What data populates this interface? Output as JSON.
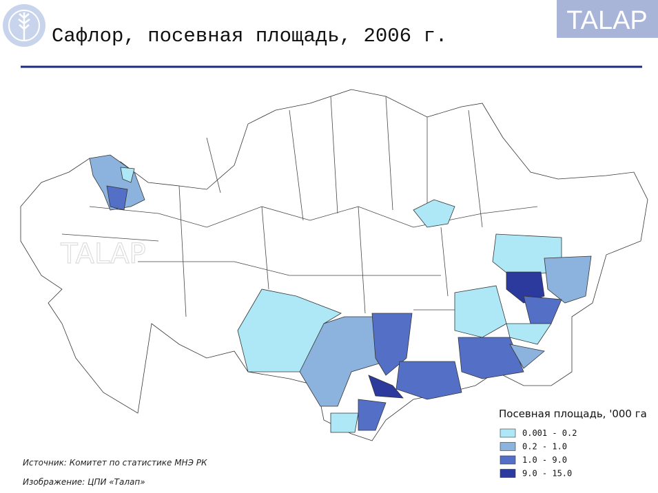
{
  "header": {
    "title": "Сафлор, посевная площадь, 2006 г.",
    "brand": "TALAP"
  },
  "map": {
    "watermark": "TALAP",
    "legend": {
      "title": "Посевная площадь, '000 га",
      "items": [
        {
          "label": "0.001 - 0.2",
          "color": "#aee8f7"
        },
        {
          "label": "0.2 - 1.0",
          "color": "#8cb2de"
        },
        {
          "label": "1.0 - 9.0",
          "color": "#5470c6"
        },
        {
          "label": "9.0 - 15.0",
          "color": "#2b3a9c"
        }
      ]
    }
  },
  "footer": {
    "source": "Источник: Комитет по статистике МНЭ РК",
    "image": "Изображение: ЦПИ «Талап»"
  }
}
